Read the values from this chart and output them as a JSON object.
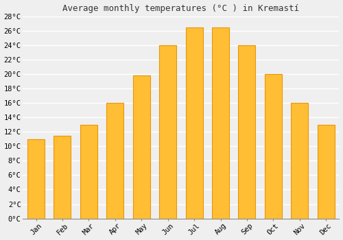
{
  "title": "Average monthly temperatures (°C ) in Kremastí",
  "months": [
    "Jan",
    "Feb",
    "Mar",
    "Apr",
    "May",
    "Jun",
    "Jul",
    "Aug",
    "Sep",
    "Oct",
    "Nov",
    "Dec"
  ],
  "temperatures": [
    11,
    11.5,
    13,
    16,
    19.8,
    24,
    26.5,
    26.5,
    24,
    20,
    16,
    13
  ],
  "bar_color": "#FFBE33",
  "bar_edge_color": "#E8960A",
  "background_color": "#EFEFEF",
  "grid_color": "#FFFFFF",
  "ylim": [
    0,
    28
  ],
  "ytick_step": 2,
  "title_fontsize": 9,
  "tick_fontsize": 7.5
}
